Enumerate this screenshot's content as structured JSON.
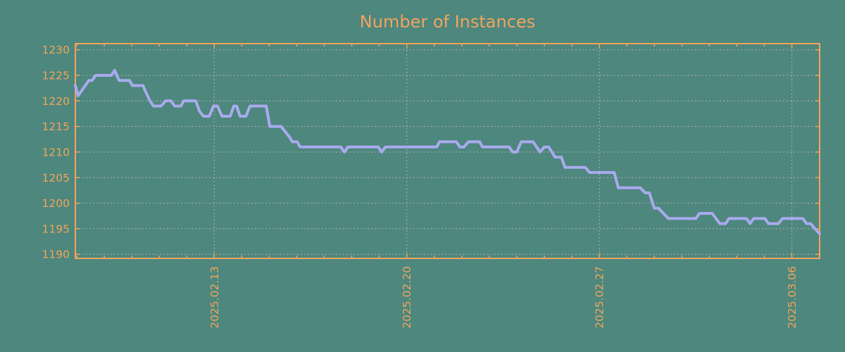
{
  "title": "Number of Instances",
  "colors": {
    "background": "#4d877d",
    "axis": "#f2a45e",
    "line": "#aaaaee",
    "grid": "#b2b2b2"
  },
  "chart_data": {
    "type": "line",
    "title": "Number of Instances",
    "x_axis": {
      "unit": "date",
      "range_days": [
        0,
        27.06
      ],
      "major_ticks": [
        {
          "day": 5.05,
          "label": "2025.02.13"
        },
        {
          "day": 12.05,
          "label": "2025.02.20"
        },
        {
          "day": 19.05,
          "label": "2025.02.27"
        },
        {
          "day": 26.05,
          "label": "2025.03.06"
        }
      ],
      "minor_tick_every_days": 1,
      "minor_tick_offset_days": 0.05,
      "grid": true
    },
    "y_axis": {
      "range": [
        1189.2,
        1231.2
      ],
      "tick_start": 1190,
      "tick_step": 5,
      "tick_end": 1230,
      "grid": true
    },
    "legend": null,
    "series": [
      {
        "name": "instances",
        "points": [
          [
            0.0,
            1223
          ],
          [
            0.1,
            1221
          ],
          [
            0.49,
            1224
          ],
          [
            0.61,
            1224
          ],
          [
            0.74,
            1225
          ],
          [
            1.31,
            1225
          ],
          [
            1.43,
            1226
          ],
          [
            1.59,
            1224
          ],
          [
            1.97,
            1224
          ],
          [
            2.07,
            1223
          ],
          [
            2.46,
            1223
          ],
          [
            2.54,
            1222
          ],
          [
            2.71,
            1220
          ],
          [
            2.84,
            1219
          ],
          [
            3.12,
            1219
          ],
          [
            3.28,
            1220
          ],
          [
            3.48,
            1220
          ],
          [
            3.61,
            1219
          ],
          [
            3.84,
            1219
          ],
          [
            3.94,
            1220
          ],
          [
            4.38,
            1220
          ],
          [
            4.51,
            1218
          ],
          [
            4.66,
            1217
          ],
          [
            4.87,
            1217
          ],
          [
            5.02,
            1219
          ],
          [
            5.17,
            1219
          ],
          [
            5.33,
            1217
          ],
          [
            5.63,
            1217
          ],
          [
            5.76,
            1219
          ],
          [
            5.86,
            1219
          ],
          [
            5.99,
            1217
          ],
          [
            6.2,
            1217
          ],
          [
            6.35,
            1219
          ],
          [
            6.94,
            1219
          ],
          [
            7.07,
            1215
          ],
          [
            7.48,
            1215
          ],
          [
            7.63,
            1214
          ],
          [
            7.78,
            1213
          ],
          [
            7.89,
            1212
          ],
          [
            8.07,
            1212
          ],
          [
            8.17,
            1211
          ],
          [
            9.65,
            1211
          ],
          [
            9.78,
            1210
          ],
          [
            9.91,
            1211
          ],
          [
            11.01,
            1211
          ],
          [
            11.14,
            1210
          ],
          [
            11.27,
            1211
          ],
          [
            13.14,
            1211
          ],
          [
            13.24,
            1212
          ],
          [
            13.85,
            1212
          ],
          [
            13.98,
            1211
          ],
          [
            14.13,
            1211
          ],
          [
            14.29,
            1212
          ],
          [
            14.7,
            1212
          ],
          [
            14.8,
            1211
          ],
          [
            15.77,
            1211
          ],
          [
            15.9,
            1210
          ],
          [
            16.05,
            1210
          ],
          [
            16.21,
            1212
          ],
          [
            16.64,
            1212
          ],
          [
            16.9,
            1210
          ],
          [
            17.05,
            1211
          ],
          [
            17.21,
            1211
          ],
          [
            17.44,
            1209
          ],
          [
            17.67,
            1209
          ],
          [
            17.8,
            1207
          ],
          [
            18.54,
            1207
          ],
          [
            18.69,
            1206
          ],
          [
            19.59,
            1206
          ],
          [
            19.74,
            1203
          ],
          [
            20.54,
            1203
          ],
          [
            20.72,
            1202
          ],
          [
            20.87,
            1202
          ],
          [
            21.05,
            1199
          ],
          [
            21.2,
            1199
          ],
          [
            21.56,
            1197
          ],
          [
            22.56,
            1197
          ],
          [
            22.69,
            1198
          ],
          [
            23.15,
            1198
          ],
          [
            23.43,
            1196
          ],
          [
            23.64,
            1196
          ],
          [
            23.76,
            1197
          ],
          [
            24.4,
            1197
          ],
          [
            24.53,
            1196
          ],
          [
            24.66,
            1197
          ],
          [
            25.07,
            1197
          ],
          [
            25.2,
            1196
          ],
          [
            25.56,
            1196
          ],
          [
            25.71,
            1197
          ],
          [
            26.45,
            1197
          ],
          [
            26.58,
            1196
          ],
          [
            26.73,
            1196
          ],
          [
            26.89,
            1195
          ],
          [
            27.06,
            1194
          ]
        ]
      }
    ]
  }
}
